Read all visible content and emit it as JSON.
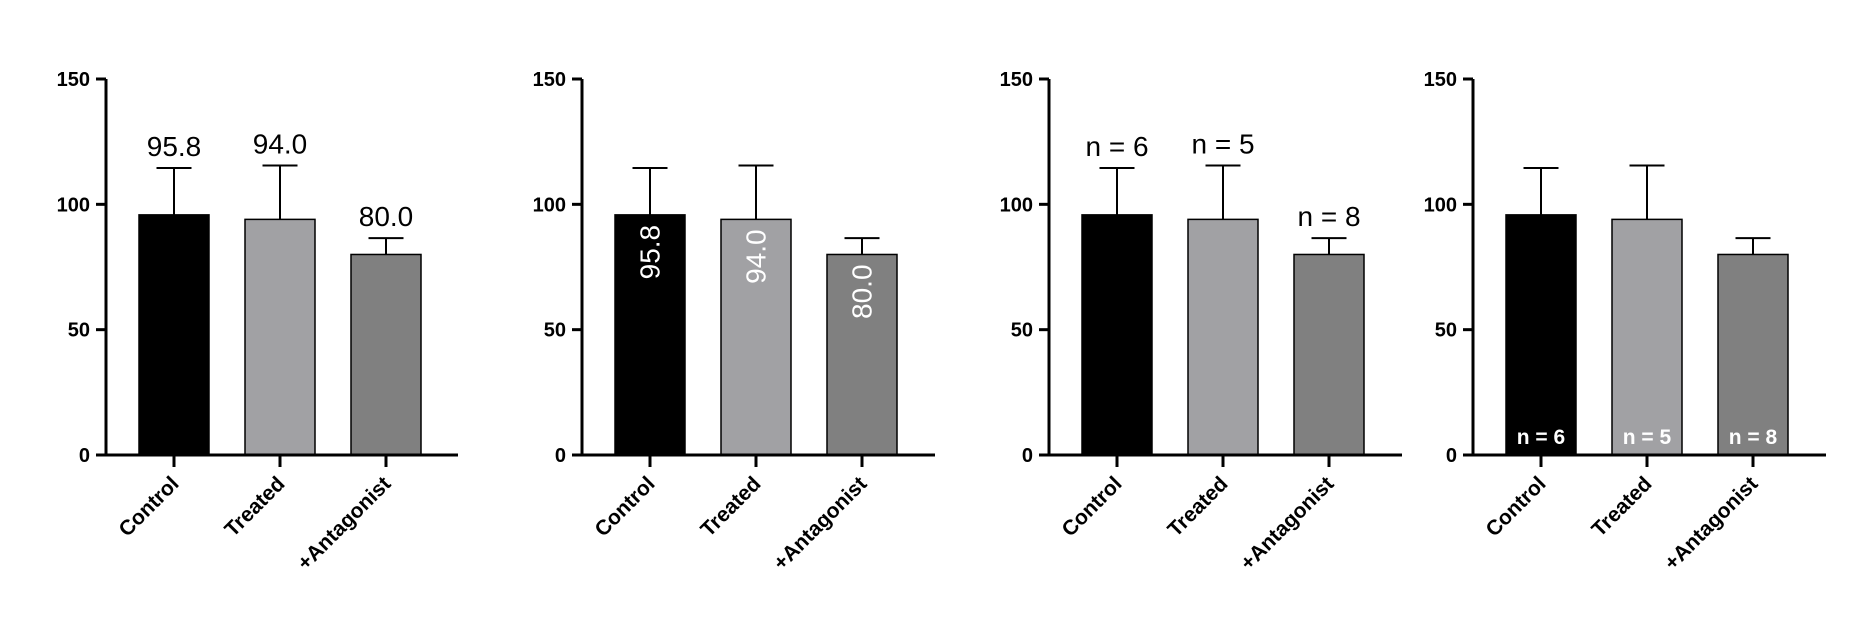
{
  "chart_data": [
    {
      "type": "bar",
      "categories": [
        "Control",
        "Treated",
        "+Antagonist"
      ],
      "values": [
        95.8,
        94.0,
        80.0
      ],
      "error_upper": [
        114.5,
        115.5,
        86.5
      ],
      "ylim": [
        0,
        150
      ],
      "yticks": [
        "0",
        "50",
        "100",
        "150"
      ],
      "bar_colors": [
        "#000000",
        "#a1a1a4",
        "#808080"
      ],
      "data_labels": [
        "95.8",
        "94.0",
        "80.0"
      ],
      "label_style": "above",
      "title": "",
      "xlabel": "",
      "ylabel": ""
    },
    {
      "type": "bar",
      "categories": [
        "Control",
        "Treated",
        "+Antagonist"
      ],
      "values": [
        95.8,
        94.0,
        80.0
      ],
      "error_upper": [
        114.5,
        115.5,
        86.5
      ],
      "ylim": [
        0,
        150
      ],
      "yticks": [
        "0",
        "50",
        "100",
        "150"
      ],
      "bar_colors": [
        "#000000",
        "#a1a1a4",
        "#808080"
      ],
      "data_labels": [
        "95.8",
        "94.0",
        "80.0"
      ],
      "label_style": "inside-rotated",
      "title": "",
      "xlabel": "",
      "ylabel": ""
    },
    {
      "type": "bar",
      "categories": [
        "Control",
        "Treated",
        "+Antagonist"
      ],
      "values": [
        95.8,
        94.0,
        80.0
      ],
      "error_upper": [
        114.5,
        115.5,
        86.5
      ],
      "ylim": [
        0,
        150
      ],
      "yticks": [
        "0",
        "50",
        "100",
        "150"
      ],
      "bar_colors": [
        "#000000",
        "#a1a1a4",
        "#808080"
      ],
      "data_labels": [
        "n = 6",
        "n = 5",
        "n = 8"
      ],
      "label_style": "above",
      "title": "",
      "xlabel": "",
      "ylabel": ""
    },
    {
      "type": "bar",
      "categories": [
        "Control",
        "Treated",
        "+Antagonist"
      ],
      "values": [
        95.8,
        94.0,
        80.0
      ],
      "error_upper": [
        114.5,
        115.5,
        86.5
      ],
      "ylim": [
        0,
        150
      ],
      "yticks": [
        "0",
        "50",
        "100",
        "150"
      ],
      "bar_colors": [
        "#000000",
        "#a1a1a4",
        "#808080"
      ],
      "data_labels": [
        "n = 6",
        "n = 5",
        "n = 8"
      ],
      "label_style": "inside-base",
      "title": "",
      "xlabel": "",
      "ylabel": ""
    }
  ]
}
